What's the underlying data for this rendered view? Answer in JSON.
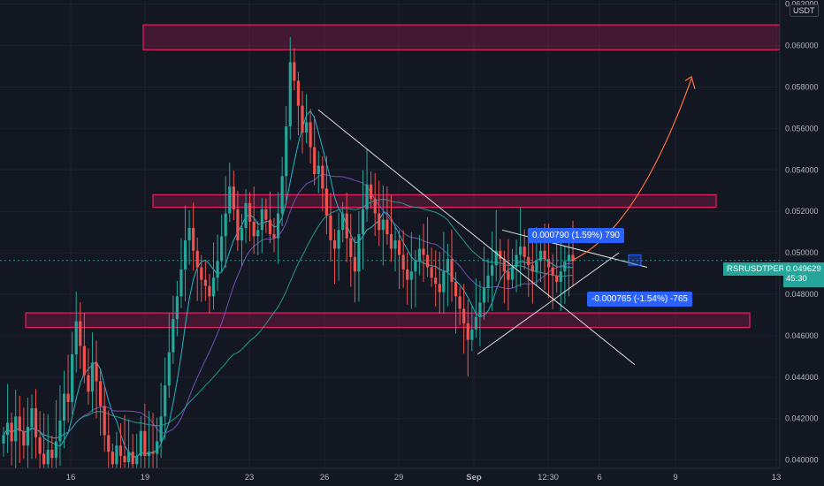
{
  "chart_data": {
    "type": "candlestick",
    "symbol": "RSRUSDTPERP",
    "unit": "USDT",
    "last_price": "0.049629",
    "countdown": "45:30",
    "ylim": [
      0.0396,
      0.0622
    ],
    "y_ticks": [
      "0.062000",
      "0.060000",
      "0.058000",
      "0.056000",
      "0.054000",
      "0.052000",
      "0.050000",
      "0.048000",
      "0.046000",
      "0.044000",
      "0.042000",
      "0.040000"
    ],
    "x_ticks": [
      "16",
      "19",
      "23",
      "26",
      "29",
      "Sep",
      "12:30",
      "6",
      "9",
      "13"
    ],
    "measure_up": "0.000790 (1.59%) 790",
    "measure_down": "-0.000765 (-1.54%) -765",
    "zones": [
      {
        "name": "upper-resistance",
        "top": 0.061,
        "bottom": 0.0598
      },
      {
        "name": "middle-resistance",
        "top": 0.0528,
        "bottom": 0.0522
      },
      {
        "name": "lower-support",
        "top": 0.0471,
        "bottom": 0.0464
      }
    ],
    "closes": [
      0.0412,
      0.0418,
      0.0409,
      0.0421,
      0.0414,
      0.0407,
      0.0416,
      0.0425,
      0.0411,
      0.0403,
      0.0398,
      0.0405,
      0.0401,
      0.0409,
      0.0419,
      0.0432,
      0.0428,
      0.0451,
      0.0467,
      0.0455,
      0.0441,
      0.0433,
      0.0447,
      0.0438,
      0.0426,
      0.0412,
      0.0404,
      0.0398,
      0.0407,
      0.0402,
      0.0399,
      0.0404,
      0.0398,
      0.0402,
      0.0414,
      0.0402,
      0.0404,
      0.0403,
      0.0409,
      0.0421,
      0.0436,
      0.0452,
      0.0468,
      0.0479,
      0.0492,
      0.0506,
      0.0512,
      0.0501,
      0.0493,
      0.0487,
      0.0484,
      0.0479,
      0.0488,
      0.0496,
      0.0508,
      0.0519,
      0.0532,
      0.0521,
      0.0506,
      0.0512,
      0.0524,
      0.0515,
      0.0508,
      0.0511,
      0.0521,
      0.0516,
      0.0509,
      0.0507,
      0.0519,
      0.0537,
      0.0561,
      0.0592,
      0.0583,
      0.0571,
      0.0558,
      0.0563,
      0.0551,
      0.0538,
      0.0542,
      0.0531,
      0.0518,
      0.0506,
      0.0502,
      0.0511,
      0.0519,
      0.0507,
      0.0498,
      0.0491,
      0.0509,
      0.0521,
      0.0533,
      0.0526,
      0.0519,
      0.0511,
      0.0516,
      0.0509,
      0.0502,
      0.0506,
      0.0499,
      0.0492,
      0.0487,
      0.0491,
      0.0496,
      0.0502,
      0.0499,
      0.0493,
      0.0488,
      0.0485,
      0.0481,
      0.0491,
      0.0497,
      0.0486,
      0.0479,
      0.0473,
      0.0466,
      0.0458,
      0.0463,
      0.0469,
      0.0476,
      0.0483,
      0.0489,
      0.0494,
      0.0501,
      0.0497,
      0.0491,
      0.0487,
      0.0493,
      0.0499,
      0.0503,
      0.0498,
      0.0494,
      0.0491,
      0.0496,
      0.0501,
      0.0497,
      0.0493,
      0.0489,
      0.0486,
      0.0491,
      0.0496,
      0.0499,
      0.0496
    ]
  }
}
